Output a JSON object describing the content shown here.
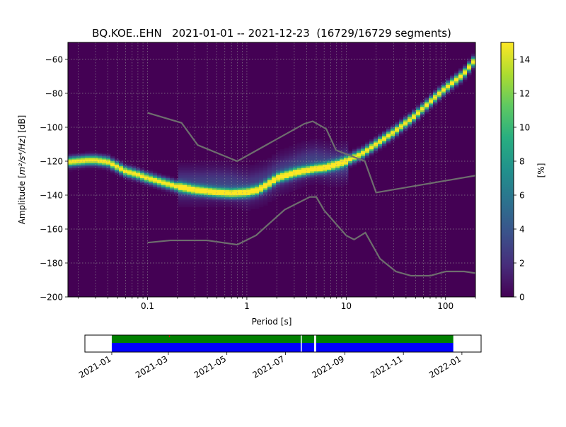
{
  "chart_data": [
    {
      "type": "heatmap",
      "title": "BQ.KOE..EHN   2021-01-01 -- 2021-12-23  (16729/16729 segments)",
      "xlabel": "Period [s]",
      "ylabel_prefix": "Amplitude [",
      "ylabel_math": "m²/s⁴/Hz",
      "ylabel_suffix": "] [dB]",
      "xscale": "log",
      "xlim": [
        0.0158,
        200
      ],
      "ylim": [
        -200,
        -50
      ],
      "x_ticks": [
        0.1,
        1,
        10,
        100
      ],
      "x_tick_labels": [
        "0.1",
        "1",
        "10",
        "100"
      ],
      "y_ticks": [
        -200,
        -180,
        -160,
        -140,
        -120,
        -100,
        -80,
        -60
      ],
      "grid": true,
      "background_color": "#440154",
      "colorbar": {
        "label": "[%]",
        "range": [
          0,
          15
        ],
        "ticks": [
          0,
          2,
          4,
          6,
          8,
          10,
          12,
          14
        ],
        "cmap": "viridis"
      },
      "psd_mode_curve": {
        "name": "mode",
        "x": [
          0.016,
          0.02,
          0.025,
          0.03,
          0.04,
          0.05,
          0.06,
          0.08,
          0.1,
          0.15,
          0.2,
          0.3,
          0.5,
          0.7,
          1.0,
          1.3,
          1.6,
          2.0,
          3.0,
          4.0,
          5.0,
          6.0,
          8.0,
          10.0,
          15.0,
          20.0,
          30.0,
          50.0,
          70.0,
          100.0,
          150.0,
          200.0
        ],
        "y": [
          -120.5,
          -120,
          -119.5,
          -119.5,
          -120.5,
          -123.5,
          -126,
          -128,
          -130,
          -133,
          -135,
          -137,
          -138.5,
          -139,
          -138.5,
          -137,
          -134,
          -130,
          -127,
          -125.5,
          -124.5,
          -124,
          -122,
          -120,
          -115,
          -110,
          -103,
          -93,
          -85,
          -77,
          -69,
          -60
        ],
        "spread_db": 1.8
      },
      "psd_secondary_band": {
        "name": "secondary",
        "x": [
          0.2,
          0.3,
          0.5,
          0.7,
          1.0,
          1.5,
          2.0,
          3.0,
          4.0,
          5.0,
          6.0,
          8.0,
          10.0
        ],
        "y": [
          -134,
          -134,
          -133.5,
          -134,
          -136,
          -133,
          -128,
          -124,
          -121,
          -120,
          -121,
          -122,
          -121
        ],
        "spread_db": 6,
        "peak_percent": 3
      },
      "nhnm": {
        "name": "NHNM",
        "x": [
          0.1,
          0.22,
          0.32,
          0.8,
          3.8,
          4.6,
          6.3,
          7.9,
          15.4,
          20.0,
          354.8
        ],
        "y": [
          -91.5,
          -97.4,
          -110.5,
          -120.0,
          -97.9,
          -96.5,
          -101.0,
          -113.5,
          -120.0,
          -138.5,
          -126.0
        ]
      },
      "nlnm": {
        "name": "NLNM",
        "x": [
          0.1,
          0.17,
          0.4,
          0.8,
          1.24,
          2.4,
          4.3,
          5.0,
          6.0,
          10.0,
          12.0,
          15.6,
          21.9,
          31.6,
          45.0,
          70.0,
          101.0,
          154.0,
          200.0
        ],
        "y": [
          -168.0,
          -166.7,
          -166.7,
          -169.2,
          -163.7,
          -148.6,
          -141.1,
          -141.1,
          -149.0,
          -163.8,
          -166.2,
          -162.1,
          -177.5,
          -185.0,
          -187.5,
          -187.5,
          -185.0,
          -185.0,
          -186.0
        ]
      }
    },
    {
      "type": "timeline",
      "x_ticks": [
        "2021-01",
        "2021-03",
        "2021-05",
        "2021-07",
        "2021-09",
        "2021-11",
        "2022-01"
      ],
      "x_tick_dates": [
        "2021-01-01",
        "2021-03-01",
        "2021-05-01",
        "2021-07-01",
        "2021-09-01",
        "2021-11-01",
        "2022-01-01"
      ],
      "xlim": [
        "2020-12-04",
        "2022-01-21"
      ],
      "data_range": [
        "2021-01-01",
        "2021-12-23"
      ],
      "colors": {
        "top": "#008000",
        "bottom": "#0000ff",
        "gap": "#ffffff",
        "marker": "#ff0000"
      },
      "gaps": [
        [
          "2021-07-17",
          "2021-07-18"
        ],
        [
          "2021-07-31",
          "2021-08-02"
        ]
      ],
      "marker_date": "2021-03-02"
    }
  ]
}
